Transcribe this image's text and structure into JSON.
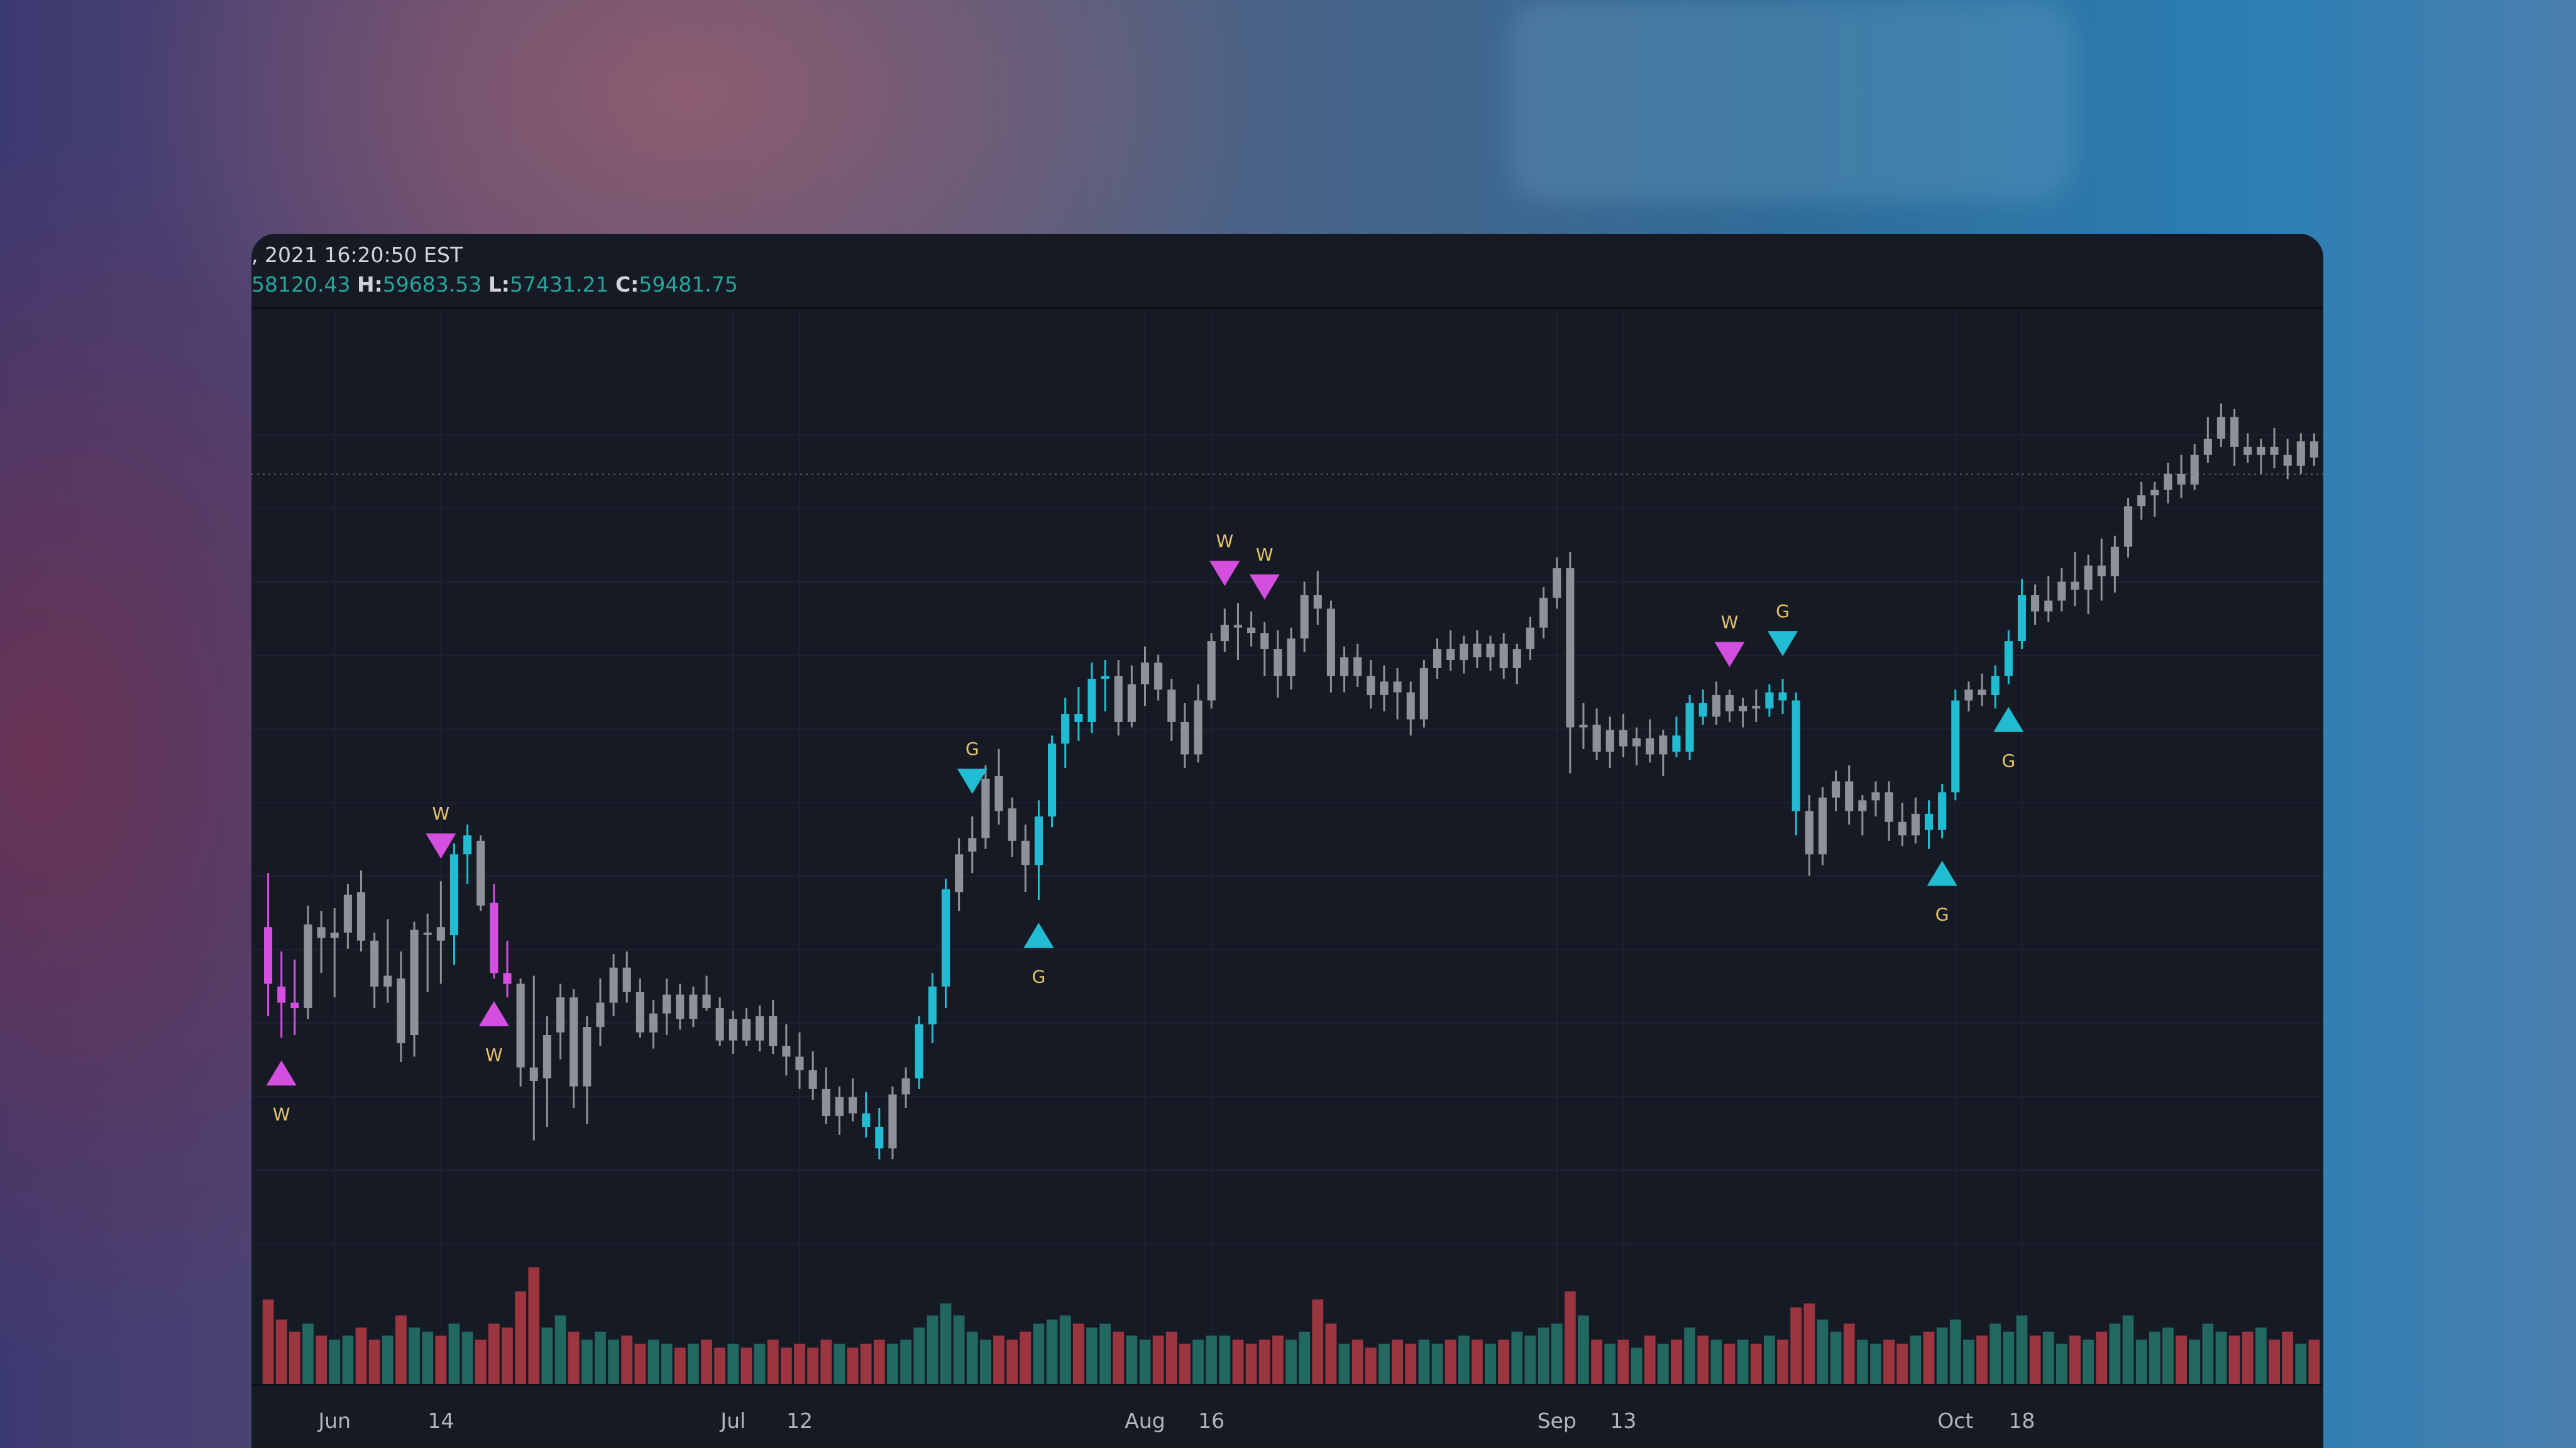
{
  "legend": {
    "datetime": ", 2021 16:20:50 EST",
    "open_value": "58120.43",
    "high_label": "H:",
    "high_value": "59683.53",
    "low_label": "L:",
    "low_value": "57431.21",
    "close_label": "C:",
    "close_value": "59481.75"
  },
  "colors": {
    "up_candle": "#22bcd2",
    "down_candle": "#d44ee0",
    "neutral_candle": "#8f9199",
    "vol_up": "#22685f",
    "vol_down": "#9b3640",
    "signal_text": "#e8c46a",
    "background": "#161a25"
  },
  "chart_data": {
    "type": "candlestick",
    "x_axis_labels": [
      {
        "label": "Jun",
        "day": 5
      },
      {
        "label": "14",
        "day": 13
      },
      {
        "label": "Jul",
        "day": 35
      },
      {
        "label": "12",
        "day": 40
      },
      {
        "label": "Aug",
        "day": 66
      },
      {
        "label": "16",
        "day": 71
      },
      {
        "label": "Sep",
        "day": 97
      },
      {
        "label": "13",
        "day": 102
      },
      {
        "label": "Oct",
        "day": 127
      },
      {
        "label": "18",
        "day": 132
      }
    ],
    "markers": [
      {
        "day": 1,
        "direction": "up",
        "color": "#d44ee0",
        "label": "W",
        "side": "below"
      },
      {
        "day": 13,
        "direction": "down",
        "color": "#d44ee0",
        "label": "W",
        "side": "above"
      },
      {
        "day": 17,
        "direction": "up",
        "color": "#d44ee0",
        "label": "W",
        "side": "below"
      },
      {
        "day": 53,
        "direction": "down",
        "color": "#22bcd2",
        "label": "G",
        "side": "above"
      },
      {
        "day": 58,
        "direction": "up",
        "color": "#22bcd2",
        "label": "G",
        "side": "below"
      },
      {
        "day": 72,
        "direction": "down",
        "color": "#d44ee0",
        "label": "W",
        "side": "above"
      },
      {
        "day": 75,
        "direction": "down",
        "color": "#d44ee0",
        "label": "W",
        "side": "above"
      },
      {
        "day": 110,
        "direction": "down",
        "color": "#d44ee0",
        "label": "W",
        "side": "above"
      },
      {
        "day": 114,
        "direction": "down",
        "color": "#22bcd2",
        "label": "G",
        "side": "above"
      },
      {
        "day": 126,
        "direction": "up",
        "color": "#22bcd2",
        "label": "G",
        "side": "below"
      },
      {
        "day": 131,
        "direction": "up",
        "color": "#22bcd2",
        "label": "G",
        "side": "below"
      }
    ],
    "last_price": 59481.75,
    "ylim": [
      41000,
      67000
    ],
    "candles": [
      [
        0,
        53500,
        55500,
        50200,
        51400,
        1,
        0.42
      ],
      [
        1,
        51300,
        52600,
        49400,
        50700,
        1,
        0.32
      ],
      [
        2,
        50700,
        52300,
        49500,
        50500,
        1,
        0.26
      ],
      [
        3,
        50500,
        54300,
        50100,
        53600,
        0,
        0.3
      ],
      [
        4,
        53500,
        54100,
        51800,
        53100,
        0,
        0.24
      ],
      [
        5,
        53100,
        54200,
        50900,
        53300,
        0,
        0.22
      ],
      [
        6,
        53300,
        55100,
        52700,
        54700,
        0,
        0.24
      ],
      [
        7,
        54800,
        55600,
        52600,
        53000,
        0,
        0.28
      ],
      [
        8,
        53000,
        53300,
        50500,
        51300,
        0,
        0.22
      ],
      [
        9,
        51300,
        53800,
        50700,
        51700,
        0,
        0.24
      ],
      [
        10,
        51600,
        52600,
        48500,
        49200,
        0,
        0.34
      ],
      [
        11,
        49500,
        53700,
        48700,
        53400,
        0,
        0.28
      ],
      [
        12,
        53300,
        54000,
        51100,
        53300,
        0,
        0.26
      ],
      [
        13,
        53500,
        55200,
        51400,
        53000,
        0,
        0.24
      ],
      [
        14,
        53200,
        56600,
        52100,
        56200,
        1,
        0.3
      ],
      [
        15,
        56200,
        57300,
        55100,
        56900,
        1,
        0.26
      ],
      [
        16,
        56700,
        56900,
        54100,
        54300,
        0,
        0.22
      ],
      [
        17,
        54400,
        55100,
        51600,
        51800,
        1,
        0.3
      ],
      [
        18,
        51800,
        53000,
        50900,
        51400,
        1,
        0.28
      ],
      [
        19,
        51400,
        51600,
        47600,
        48300,
        0,
        0.46
      ],
      [
        20,
        48300,
        51700,
        45600,
        47800,
        0,
        0.58
      ],
      [
        21,
        47900,
        50200,
        46100,
        49500,
        0,
        0.28
      ],
      [
        22,
        49600,
        51400,
        48600,
        50900,
        0,
        0.34
      ],
      [
        23,
        50900,
        51200,
        46800,
        47600,
        0,
        0.26
      ],
      [
        24,
        47600,
        50200,
        46200,
        49800,
        0,
        0.22
      ],
      [
        25,
        49800,
        51600,
        49100,
        50700,
        0,
        0.26
      ],
      [
        26,
        50700,
        52500,
        50200,
        52000,
        0,
        0.22
      ],
      [
        27,
        52000,
        52600,
        50700,
        51100,
        0,
        0.24
      ],
      [
        28,
        51100,
        51600,
        49400,
        49600,
        0,
        0.2
      ],
      [
        29,
        49600,
        50800,
        49000,
        50300,
        0,
        0.22
      ],
      [
        30,
        50300,
        51600,
        49500,
        51000,
        0,
        0.2
      ],
      [
        31,
        51000,
        51400,
        49700,
        50100,
        0,
        0.18
      ],
      [
        32,
        50100,
        51300,
        49800,
        51000,
        0,
        0.2
      ],
      [
        33,
        51000,
        51700,
        50400,
        50500,
        0,
        0.22
      ],
      [
        34,
        50500,
        50900,
        49100,
        49300,
        0,
        0.18
      ],
      [
        35,
        49300,
        50400,
        48800,
        50100,
        0,
        0.2
      ],
      [
        36,
        50100,
        50500,
        49100,
        49300,
        0,
        0.18
      ],
      [
        37,
        49300,
        50600,
        48900,
        50200,
        0,
        0.2
      ],
      [
        38,
        50200,
        50800,
        48800,
        49100,
        0,
        0.22
      ],
      [
        39,
        49100,
        49900,
        48000,
        48700,
        0,
        0.18
      ],
      [
        40,
        48700,
        49600,
        47500,
        48200,
        0,
        0.2
      ],
      [
        41,
        48200,
        48900,
        47100,
        47500,
        0,
        0.18
      ],
      [
        42,
        47500,
        48300,
        46200,
        46500,
        0,
        0.22
      ],
      [
        43,
        46500,
        47600,
        45800,
        47200,
        0,
        0.2
      ],
      [
        44,
        47200,
        47900,
        46300,
        46600,
        0,
        0.18
      ],
      [
        45,
        46600,
        47400,
        45700,
        46100,
        1,
        0.2
      ],
      [
        46,
        46100,
        46800,
        44900,
        45300,
        1,
        0.22
      ],
      [
        47,
        45300,
        47600,
        44900,
        47300,
        0,
        0.2
      ],
      [
        48,
        47300,
        48300,
        46800,
        47900,
        0,
        0.22
      ],
      [
        49,
        47900,
        50200,
        47500,
        49900,
        1,
        0.28
      ],
      [
        50,
        49900,
        51800,
        49200,
        51300,
        1,
        0.34
      ],
      [
        51,
        51300,
        55300,
        50500,
        54900,
        1,
        0.4
      ],
      [
        52,
        54800,
        56800,
        54100,
        56200,
        0,
        0.34
      ],
      [
        53,
        56300,
        57600,
        55500,
        56800,
        0,
        0.26
      ],
      [
        54,
        56800,
        59500,
        56400,
        59000,
        0,
        0.22
      ],
      [
        55,
        59100,
        60100,
        57300,
        57800,
        0,
        0.24
      ],
      [
        56,
        57900,
        58300,
        56100,
        56700,
        0,
        0.22
      ],
      [
        57,
        56700,
        57300,
        54800,
        55800,
        0,
        0.26
      ],
      [
        58,
        55800,
        58200,
        54500,
        57600,
        1,
        0.3
      ],
      [
        59,
        57600,
        60600,
        57200,
        60300,
        1,
        0.32
      ],
      [
        60,
        60300,
        62000,
        59400,
        61400,
        1,
        0.34
      ],
      [
        61,
        61400,
        62400,
        60400,
        61100,
        1,
        0.3
      ],
      [
        62,
        61100,
        63300,
        60700,
        62700,
        1,
        0.28
      ],
      [
        63,
        62700,
        63400,
        61500,
        62800,
        1,
        0.3
      ],
      [
        64,
        62800,
        63400,
        60600,
        61100,
        0,
        0.26
      ],
      [
        65,
        61100,
        63200,
        60900,
        62500,
        0,
        0.24
      ],
      [
        66,
        62500,
        63900,
        61700,
        63300,
        0,
        0.22
      ],
      [
        67,
        63300,
        63600,
        61900,
        62300,
        0,
        0.24
      ],
      [
        68,
        62300,
        62700,
        60400,
        61100,
        0,
        0.26
      ],
      [
        69,
        61100,
        61800,
        59400,
        59900,
        0,
        0.2
      ],
      [
        70,
        59900,
        62500,
        59600,
        61900,
        0,
        0.22
      ],
      [
        71,
        61900,
        64400,
        61600,
        64100,
        0,
        0.24
      ],
      [
        72,
        64100,
        65300,
        63700,
        64700,
        0,
        0.24
      ],
      [
        73,
        64700,
        65500,
        63400,
        64600,
        0,
        0.22
      ],
      [
        74,
        64600,
        65200,
        63900,
        64400,
        0,
        0.2
      ],
      [
        75,
        64400,
        64800,
        62800,
        63800,
        0,
        0.22
      ],
      [
        76,
        63800,
        64500,
        62000,
        62800,
        0,
        0.24
      ],
      [
        77,
        62800,
        64600,
        62300,
        64200,
        0,
        0.22
      ],
      [
        78,
        64200,
        66300,
        63700,
        65800,
        0,
        0.26
      ],
      [
        79,
        65800,
        66700,
        64700,
        65300,
        0,
        0.42
      ],
      [
        80,
        65300,
        65600,
        62200,
        62800,
        0,
        0.3
      ],
      [
        81,
        62800,
        63900,
        62200,
        63500,
        0,
        0.2
      ],
      [
        82,
        63500,
        64000,
        62400,
        62800,
        0,
        0.22
      ],
      [
        83,
        62800,
        63400,
        61600,
        62100,
        0,
        0.18
      ],
      [
        84,
        62100,
        63200,
        61500,
        62600,
        0,
        0.2
      ],
      [
        85,
        62600,
        63100,
        61200,
        62200,
        0,
        0.22
      ]
    ],
    "volume": []
  }
}
